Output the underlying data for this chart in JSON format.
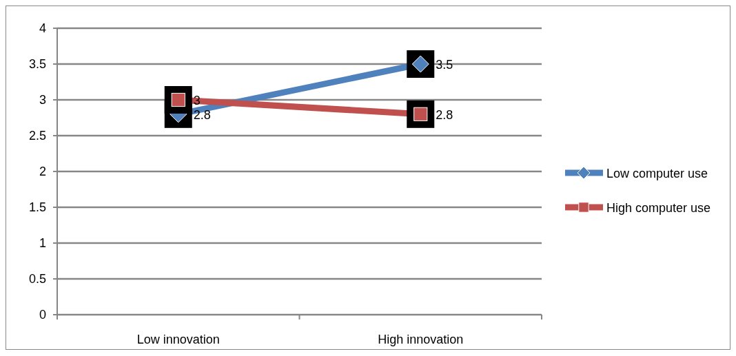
{
  "chart_data": {
    "type": "line",
    "categories": [
      "Low innovation",
      "High innovation"
    ],
    "series": [
      {
        "name": "Low computer use",
        "color": "#4f81bd",
        "values": [
          2.8,
          3.5
        ],
        "marker": "diamond"
      },
      {
        "name": "High computer use",
        "color": "#c0504d",
        "values": [
          3,
          2.8
        ],
        "marker": "square"
      }
    ],
    "ylim": [
      0,
      4
    ],
    "yticks": [
      0,
      0.5,
      1,
      1.5,
      2,
      2.5,
      3,
      3.5,
      4
    ],
    "grid": "y",
    "legend": "right",
    "data_labels": true
  }
}
